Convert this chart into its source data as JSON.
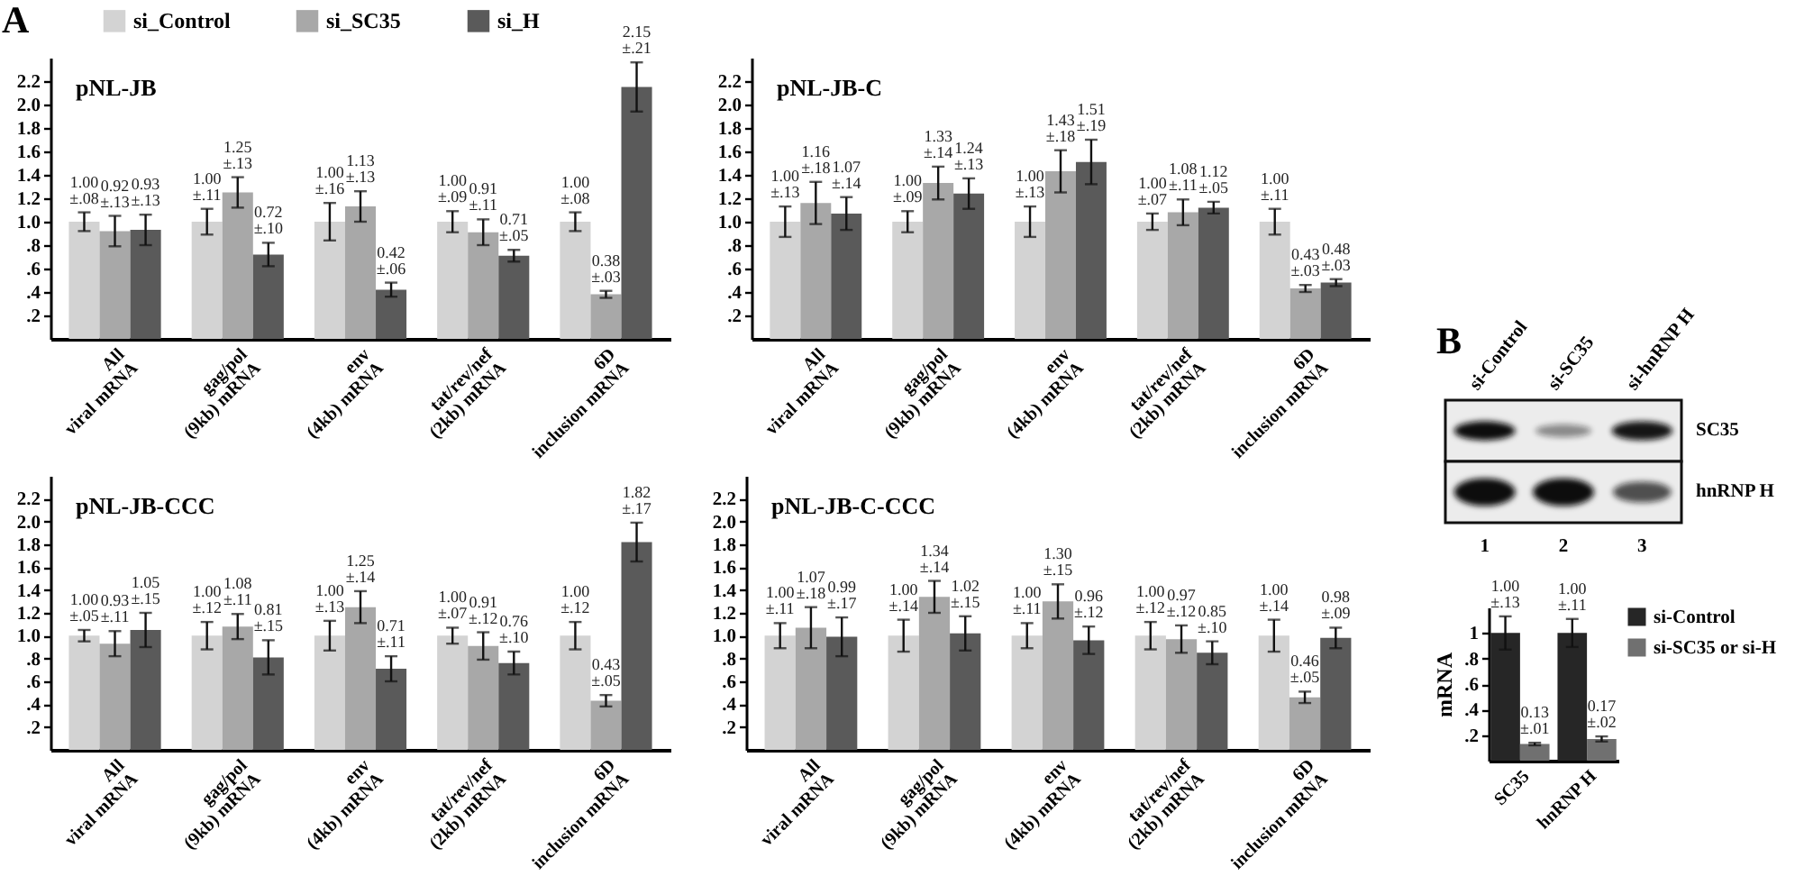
{
  "chart_data": [
    {
      "type": "bar",
      "title": "pNL-JB",
      "annotations": [
        "A"
      ],
      "categories": [
        "All\nviral mRNA",
        "gag/pol\n(9kb) mRNA",
        "env\n(4kb) mRNA",
        "tat/rev/nef\n(2kb) mRNA",
        "6D\ninclusion mRNA"
      ],
      "series": [
        {
          "name": "si_Control",
          "color": "#d3d3d3",
          "values": [
            1,
            1,
            1,
            1,
            1
          ],
          "errors": [
            0.08,
            0.11,
            0.16,
            0.09,
            0.08
          ],
          "value_labels": [
            "1.00\n±.08",
            "1.00\n±.11",
            "1.00\n±.16",
            "1.00\n±.09",
            "1.00\n±.08"
          ]
        },
        {
          "name": "si_SC35",
          "color": "#a8a8a8",
          "values": [
            0.92,
            1.25,
            1.13,
            0.91,
            0.38
          ],
          "errors": [
            0.13,
            0.13,
            0.13,
            0.11,
            0.03
          ],
          "value_labels": [
            "0.92\n±.13",
            "1.25\n±.13",
            "1.13\n±.13",
            "0.91\n±.11",
            "0.38\n±.03"
          ]
        },
        {
          "name": "si_H",
          "color": "#5a5a5a",
          "values": [
            0.93,
            0.72,
            0.42,
            0.71,
            2.15
          ],
          "errors": [
            0.13,
            0.1,
            0.06,
            0.05,
            0.21
          ],
          "value_labels": [
            "0.93\n±.13",
            "0.72\n±.10",
            "0.42\n±.06",
            "0.71\n±.05",
            "2.15\n±.21"
          ]
        }
      ],
      "ylim": [
        0,
        2.4
      ],
      "yticks": [
        {
          "value": 0.2,
          "label": ".2"
        },
        {
          "value": 0.4,
          "label": ".4"
        },
        {
          "value": 0.6,
          "label": ".6"
        },
        {
          "value": 0.8,
          "label": ".8"
        },
        {
          "value": 1,
          "label": "1.0"
        },
        1.2,
        1.4,
        1.6,
        1.8,
        {
          "value": 2,
          "label": "2.0"
        },
        2.2
      ],
      "legend": "top"
    },
    {
      "type": "bar",
      "title": "pNL-JB-C",
      "categories": [
        "All\nviral mRNA",
        "gag/pol\n(9kb) mRNA",
        "env\n(4kb) mRNA",
        "tat/rev/nef\n(2kb) mRNA",
        "6D\ninclusion mRNA"
      ],
      "series": [
        {
          "color": "#d3d3d3",
          "values": [
            1,
            1,
            1,
            1,
            1
          ],
          "errors": [
            0.13,
            0.09,
            0.13,
            0.07,
            0.11
          ],
          "value_labels": [
            "1.00\n±.13",
            "1.00\n±.09",
            "1.00\n±.13",
            "1.00\n±.07",
            "1.00\n±.11"
          ]
        },
        {
          "color": "#a8a8a8",
          "values": [
            1.16,
            1.33,
            1.43,
            1.08,
            0.43
          ],
          "errors": [
            0.18,
            0.14,
            0.18,
            0.11,
            0.03
          ],
          "value_labels": [
            "1.16\n±.18",
            "1.33\n±.14",
            "1.43\n±.18",
            "1.08\n±.11",
            "0.43\n±.03"
          ]
        },
        {
          "color": "#5a5a5a",
          "values": [
            1.07,
            1.24,
            1.51,
            1.12,
            0.48
          ],
          "errors": [
            0.14,
            0.13,
            0.19,
            0.05,
            0.03
          ],
          "value_labels": [
            "1.07\n±.14",
            "1.24\n±.13",
            "1.51\n±.19",
            "1.12\n±.05",
            "0.48\n±.03"
          ]
        }
      ],
      "ylim": [
        0,
        2.4
      ],
      "yticks": [
        {
          "value": 0.2,
          "label": ".2"
        },
        {
          "value": 0.4,
          "label": ".4"
        },
        {
          "value": 0.6,
          "label": ".6"
        },
        {
          "value": 0.8,
          "label": ".8"
        },
        {
          "value": 1,
          "label": "1.0"
        },
        1.2,
        1.4,
        1.6,
        1.8,
        {
          "value": 2,
          "label": "2.0"
        },
        2.2
      ]
    },
    {
      "type": "bar",
      "title": "pNL-JB-CCC",
      "categories": [
        "All\nviral mRNA",
        "gag/pol\n(9kb) mRNA",
        "env\n(4kb) mRNA",
        "tat/rev/nef\n(2kb) mRNA",
        "6D\ninclusion mRNA"
      ],
      "series": [
        {
          "color": "#d3d3d3",
          "values": [
            1,
            1,
            1,
            1,
            1
          ],
          "errors": [
            0.05,
            0.12,
            0.13,
            0.07,
            0.12
          ],
          "value_labels": [
            "1.00\n±.05",
            "1.00\n±.12",
            "1.00\n±.13",
            "1.00\n±.07",
            "1.00\n±.12"
          ]
        },
        {
          "color": "#a8a8a8",
          "values": [
            0.93,
            1.08,
            1.25,
            0.91,
            0.43
          ],
          "errors": [
            0.11,
            0.11,
            0.14,
            0.12,
            0.05
          ],
          "value_labels": [
            "0.93\n±.11",
            "1.08\n±.11",
            "1.25\n±.14",
            "0.91\n±.12",
            "0.43\n±.05"
          ]
        },
        {
          "color": "#5a5a5a",
          "values": [
            1.05,
            0.81,
            0.71,
            0.76,
            1.82
          ],
          "errors": [
            0.15,
            0.15,
            0.11,
            0.1,
            0.17
          ],
          "value_labels": [
            "1.05\n±.15",
            "0.81\n±.15",
            "0.71\n±.11",
            "0.76\n±.10",
            "1.82\n±.17"
          ]
        }
      ],
      "ylim": [
        0,
        2.4
      ],
      "yticks": [
        {
          "value": 0.2,
          "label": ".2"
        },
        {
          "value": 0.4,
          "label": ".4"
        },
        {
          "value": 0.6,
          "label": ".6"
        },
        {
          "value": 0.8,
          "label": ".8"
        },
        {
          "value": 1,
          "label": "1.0"
        },
        1.2,
        1.4,
        1.6,
        1.8,
        {
          "value": 2,
          "label": "2.0"
        },
        2.2
      ]
    },
    {
      "type": "bar",
      "title": "pNL-JB-C-CCC",
      "categories": [
        "All\nviral mRNA",
        "gag/pol\n(9kb) mRNA",
        "env\n(4kb) mRNA",
        "tat/rev/nef\n(2kb) mRNA",
        "6D\ninclusion mRNA"
      ],
      "series": [
        {
          "color": "#d3d3d3",
          "values": [
            1,
            1,
            1,
            1,
            1
          ],
          "errors": [
            0.11,
            0.14,
            0.11,
            0.12,
            0.14
          ],
          "value_labels": [
            "1.00\n±.11",
            "1.00\n±.14",
            "1.00\n±.11",
            "1.00\n±.12",
            "1.00\n±.14"
          ]
        },
        {
          "color": "#a8a8a8",
          "values": [
            1.07,
            1.34,
            1.3,
            0.97,
            0.46
          ],
          "errors": [
            0.18,
            0.14,
            0.15,
            0.12,
            0.05
          ],
          "value_labels": [
            "1.07\n±.18",
            "1.34\n±.14",
            "1.30\n±.15",
            "0.97\n±.12",
            "0.46\n±.05"
          ]
        },
        {
          "color": "#5a5a5a",
          "values": [
            0.99,
            1.02,
            0.96,
            0.85,
            0.98
          ],
          "errors": [
            0.17,
            0.15,
            0.12,
            0.1,
            0.09
          ],
          "value_labels": [
            "0.99\n±.17",
            "1.02\n±.15",
            "0.96\n±.12",
            "0.85\n±.10",
            "0.98\n±.09"
          ]
        }
      ],
      "ylim": [
        0,
        2.4
      ],
      "yticks": [
        {
          "value": 0.2,
          "label": ".2"
        },
        {
          "value": 0.4,
          "label": ".4"
        },
        {
          "value": 0.6,
          "label": ".6"
        },
        {
          "value": 0.8,
          "label": ".8"
        },
        {
          "value": 1,
          "label": "1.0"
        },
        1.2,
        1.4,
        1.6,
        1.8,
        {
          "value": 2,
          "label": "2.0"
        },
        2.2
      ]
    },
    {
      "type": "other",
      "title": "B",
      "categories": [
        "si-Control",
        "si-SC35",
        "si-hnRNP H"
      ],
      "y_categories": [
        "SC35",
        "hnRNP H"
      ],
      "annotations": [
        "1",
        "2",
        "3"
      ]
    },
    {
      "type": "bar",
      "categories": [
        "SC35",
        "hnRNP H"
      ],
      "ylabel": "mRNA",
      "series": [
        {
          "name": "si-Control",
          "color": "#262626",
          "values": [
            1,
            1
          ],
          "errors": [
            0.13,
            0.11
          ],
          "value_labels": [
            "1.00\n±.13",
            "1.00\n±.11"
          ]
        },
        {
          "name": "si-SC35 or si-H",
          "color": "#707070",
          "values": [
            0.13,
            0.17
          ],
          "errors": [
            0.01,
            0.02
          ],
          "value_labels": [
            "0.13\n±.01",
            "0.17\n±.02"
          ]
        }
      ],
      "ylim": [
        0,
        1.2
      ],
      "yticks": [
        {
          "value": 0.2,
          "label": ".2"
        },
        {
          "value": 0.4,
          "label": ".4"
        },
        {
          "value": 0.6,
          "label": ".6"
        },
        {
          "value": 0.8,
          "label": ".8"
        },
        1
      ],
      "legend": "right"
    }
  ]
}
